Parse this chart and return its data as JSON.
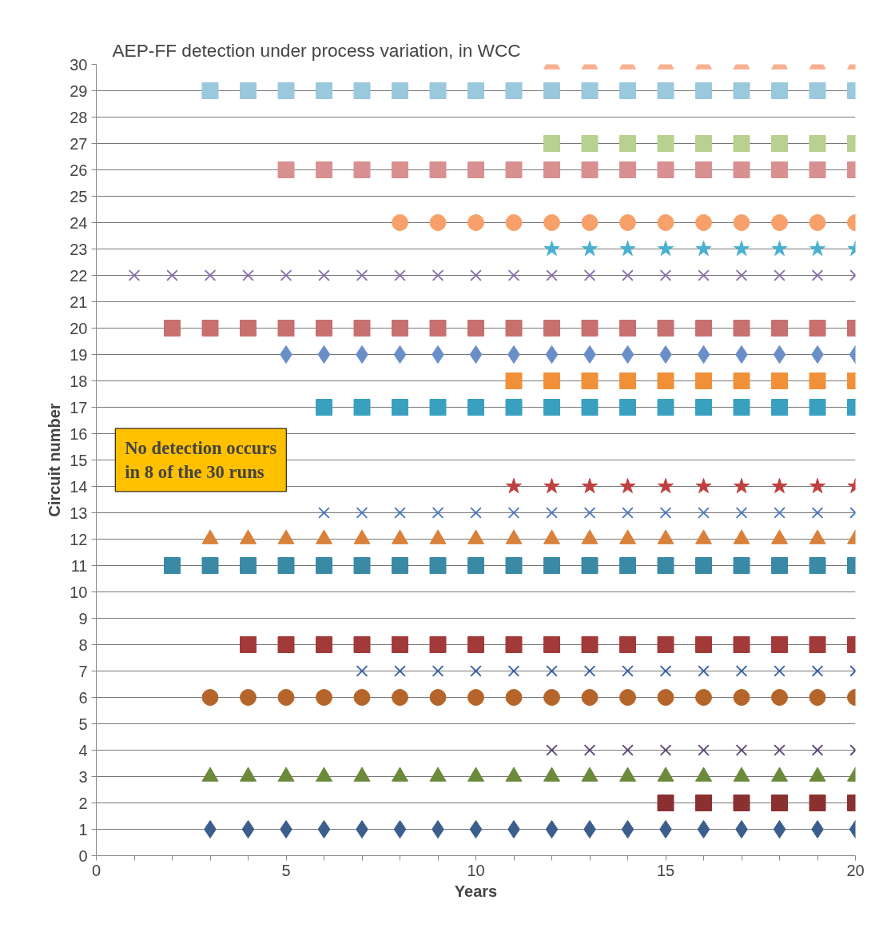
{
  "chart_data": {
    "type": "scatter",
    "title": "AEP-FF detection under process variation, in WCC",
    "xlabel": "Years",
    "ylabel": "Circuit number",
    "xlim": [
      0,
      20
    ],
    "ylim": [
      0,
      30
    ],
    "xticks": [
      0,
      {
        "value": 1,
        "label": null
      },
      {
        "value": 2,
        "label": null
      },
      {
        "value": 3,
        "label": null
      },
      {
        "value": 4,
        "label": null
      },
      5,
      {
        "value": 6,
        "label": null
      },
      {
        "value": 7,
        "label": null
      },
      {
        "value": 8,
        "label": null
      },
      {
        "value": 9,
        "label": null
      },
      10,
      {
        "value": 11,
        "label": null
      },
      {
        "value": 12,
        "label": null
      },
      {
        "value": 13,
        "label": null
      },
      {
        "value": 14,
        "label": null
      },
      15,
      {
        "value": 16,
        "label": null
      },
      {
        "value": 17,
        "label": null
      },
      {
        "value": 18,
        "label": null
      },
      {
        "value": 19,
        "label": null
      },
      20
    ],
    "yticks": [
      0,
      1,
      2,
      3,
      4,
      5,
      6,
      7,
      8,
      9,
      10,
      11,
      12,
      13,
      14,
      15,
      16,
      17,
      18,
      19,
      20,
      21,
      22,
      23,
      24,
      25,
      26,
      27,
      28,
      29,
      30
    ],
    "grid": "y",
    "annotations": [
      "No detection occurs in 8 of the 30 runs"
    ],
    "series": [
      {
        "color": "#3b5e8c",
        "marker": "diamond",
        "x": [
          3,
          4,
          5,
          6,
          7,
          8,
          9,
          10,
          11,
          12,
          13,
          14,
          15,
          16,
          17,
          18,
          19,
          20
        ],
        "values": [
          1,
          1,
          1,
          1,
          1,
          1,
          1,
          1,
          1,
          1,
          1,
          1,
          1,
          1,
          1,
          1,
          1,
          1
        ]
      },
      {
        "color": "#8b3030",
        "marker": "square",
        "x": [
          15,
          16,
          17,
          18,
          19,
          20
        ],
        "values": [
          2,
          2,
          2,
          2,
          2,
          2
        ]
      },
      {
        "color": "#6b8a3a",
        "marker": "triangle",
        "x": [
          3,
          4,
          5,
          6,
          7,
          8,
          9,
          10,
          11,
          12,
          13,
          14,
          15,
          16,
          17,
          18,
          19,
          20
        ],
        "values": [
          3,
          3,
          3,
          3,
          3,
          3,
          3,
          3,
          3,
          3,
          3,
          3,
          3,
          3,
          3,
          3,
          3,
          3
        ]
      },
      {
        "color": "#5f4a7a",
        "marker": "cross",
        "x": [
          12,
          13,
          14,
          15,
          16,
          17,
          18,
          19,
          20
        ],
        "values": [
          4,
          4,
          4,
          4,
          4,
          4,
          4,
          4,
          4
        ]
      },
      {
        "color": "#b5652a",
        "marker": "circle",
        "x": [
          3,
          4,
          5,
          6,
          7,
          8,
          9,
          10,
          11,
          12,
          13,
          14,
          15,
          16,
          17,
          18,
          19,
          20
        ],
        "values": [
          6,
          6,
          6,
          6,
          6,
          6,
          6,
          6,
          6,
          6,
          6,
          6,
          6,
          6,
          6,
          6,
          6,
          6
        ]
      },
      {
        "color": "#3a62a8",
        "marker": "cross",
        "x": [
          7,
          8,
          9,
          10,
          11,
          12,
          13,
          14,
          15,
          16,
          17,
          18,
          19,
          20
        ],
        "values": [
          7,
          7,
          7,
          7,
          7,
          7,
          7,
          7,
          7,
          7,
          7,
          7,
          7,
          7
        ]
      },
      {
        "color": "#a33a3a",
        "marker": "square",
        "x": [
          4,
          5,
          6,
          7,
          8,
          9,
          10,
          11,
          12,
          13,
          14,
          15,
          16,
          17,
          18,
          19,
          20
        ],
        "values": [
          8,
          8,
          8,
          8,
          8,
          8,
          8,
          8,
          8,
          8,
          8,
          8,
          8,
          8,
          8,
          8,
          8
        ]
      },
      {
        "color": "#3a8aa5",
        "marker": "square",
        "x": [
          2,
          3,
          4,
          5,
          6,
          7,
          8,
          9,
          10,
          11,
          12,
          13,
          14,
          15,
          16,
          17,
          18,
          19,
          20
        ],
        "values": [
          11,
          11,
          11,
          11,
          11,
          11,
          11,
          11,
          11,
          11,
          11,
          11,
          11,
          11,
          11,
          11,
          11,
          11,
          11
        ]
      },
      {
        "color": "#d9803a",
        "marker": "triangle",
        "x": [
          3,
          4,
          5,
          6,
          7,
          8,
          9,
          10,
          11,
          12,
          13,
          14,
          15,
          16,
          17,
          18,
          19,
          20
        ],
        "values": [
          12,
          12,
          12,
          12,
          12,
          12,
          12,
          12,
          12,
          12,
          12,
          12,
          12,
          12,
          12,
          12,
          12,
          12
        ]
      },
      {
        "color": "#4a7ac4",
        "marker": "cross",
        "x": [
          6,
          7,
          8,
          9,
          10,
          11,
          12,
          13,
          14,
          15,
          16,
          17,
          18,
          19,
          20
        ],
        "values": [
          13,
          13,
          13,
          13,
          13,
          13,
          13,
          13,
          13,
          13,
          13,
          13,
          13,
          13,
          13
        ]
      },
      {
        "color": "#c04040",
        "marker": "star",
        "x": [
          11,
          12,
          13,
          14,
          15,
          16,
          17,
          18,
          19,
          20
        ],
        "values": [
          14,
          14,
          14,
          14,
          14,
          14,
          14,
          14,
          14,
          14
        ]
      },
      {
        "color": "#3aa0c0",
        "marker": "square",
        "x": [
          6,
          7,
          8,
          9,
          10,
          11,
          12,
          13,
          14,
          15,
          16,
          17,
          18,
          19,
          20
        ],
        "values": [
          17,
          17,
          17,
          17,
          17,
          17,
          17,
          17,
          17,
          17,
          17,
          17,
          17,
          17,
          17
        ]
      },
      {
        "color": "#f0913a",
        "marker": "square",
        "x": [
          11,
          12,
          13,
          14,
          15,
          16,
          17,
          18,
          19,
          20
        ],
        "values": [
          18,
          18,
          18,
          18,
          18,
          18,
          18,
          18,
          18,
          18
        ]
      },
      {
        "color": "#6a8fc8",
        "marker": "diamond",
        "x": [
          5,
          6,
          7,
          8,
          9,
          10,
          11,
          12,
          13,
          14,
          15,
          16,
          17,
          18,
          19,
          20
        ],
        "values": [
          19,
          19,
          19,
          19,
          19,
          19,
          19,
          19,
          19,
          19,
          19,
          19,
          19,
          19,
          19,
          19
        ]
      },
      {
        "color": "#c87070",
        "marker": "square",
        "x": [
          2,
          3,
          4,
          5,
          6,
          7,
          8,
          9,
          10,
          11,
          12,
          13,
          14,
          15,
          16,
          17,
          18,
          19,
          20
        ],
        "values": [
          20,
          20,
          20,
          20,
          20,
          20,
          20,
          20,
          20,
          20,
          20,
          20,
          20,
          20,
          20,
          20,
          20,
          20,
          20
        ]
      },
      {
        "color": "#8a70b0",
        "marker": "cross",
        "x": [
          1,
          2,
          3,
          4,
          5,
          6,
          7,
          8,
          9,
          10,
          11,
          12,
          13,
          14,
          15,
          16,
          17,
          18,
          19,
          20
        ],
        "values": [
          22,
          22,
          22,
          22,
          22,
          22,
          22,
          22,
          22,
          22,
          22,
          22,
          22,
          22,
          22,
          22,
          22,
          22,
          22,
          22
        ]
      },
      {
        "color": "#4ab0d0",
        "marker": "star",
        "x": [
          12,
          13,
          14,
          15,
          16,
          17,
          18,
          19,
          20
        ],
        "values": [
          23,
          23,
          23,
          23,
          23,
          23,
          23,
          23,
          23
        ]
      },
      {
        "color": "#f7a06a",
        "marker": "circle",
        "x": [
          8,
          9,
          10,
          11,
          12,
          13,
          14,
          15,
          16,
          17,
          18,
          19,
          20
        ],
        "values": [
          24,
          24,
          24,
          24,
          24,
          24,
          24,
          24,
          24,
          24,
          24,
          24,
          24
        ]
      },
      {
        "color": "#d99090",
        "marker": "square",
        "x": [
          5,
          6,
          7,
          8,
          9,
          10,
          11,
          12,
          13,
          14,
          15,
          16,
          17,
          18,
          19,
          20
        ],
        "values": [
          26,
          26,
          26,
          26,
          26,
          26,
          26,
          26,
          26,
          26,
          26,
          26,
          26,
          26,
          26,
          26
        ]
      },
      {
        "color": "#b8d090",
        "marker": "square",
        "x": [
          12,
          13,
          14,
          15,
          16,
          17,
          18,
          19,
          20
        ],
        "values": [
          27,
          27,
          27,
          27,
          27,
          27,
          27,
          27,
          27
        ]
      },
      {
        "color": "#9ac8dc",
        "marker": "square",
        "x": [
          3,
          4,
          5,
          6,
          7,
          8,
          9,
          10,
          11,
          12,
          13,
          14,
          15,
          16,
          17,
          18,
          19,
          20
        ],
        "values": [
          29,
          29,
          29,
          29,
          29,
          29,
          29,
          29,
          29,
          29,
          29,
          29,
          29,
          29,
          29,
          29,
          29,
          29
        ]
      },
      {
        "color": "#f8b090",
        "marker": "triangle",
        "x": [
          12,
          13,
          14,
          15,
          16,
          17,
          18,
          19,
          20
        ],
        "values": [
          30,
          30,
          30,
          30,
          30,
          30,
          30,
          30,
          30
        ]
      }
    ]
  }
}
